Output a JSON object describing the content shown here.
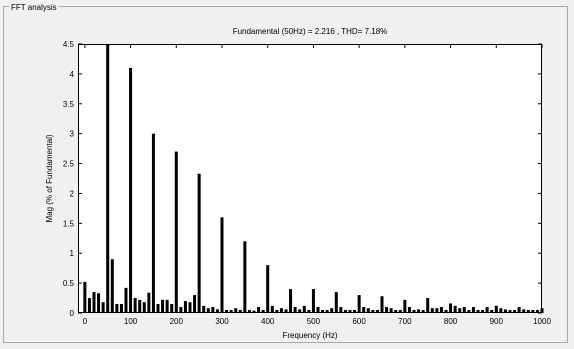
{
  "panel": {
    "title": "FFT analysis"
  },
  "chart_data": {
    "type": "bar",
    "title": "Fundamental (50Hz) = 2.216 , THD= 7.18%",
    "xlabel": "Frequency (Hz)",
    "ylabel": "Mag (% of Fundamental)",
    "xlim": [
      -15,
      1000
    ],
    "ylim": [
      0,
      4.5
    ],
    "xticks": [
      0,
      100,
      200,
      300,
      400,
      500,
      600,
      700,
      800,
      900,
      1000
    ],
    "yticks": [
      0,
      0.5,
      1,
      1.5,
      2,
      2.5,
      3,
      3.5,
      4,
      4.5
    ],
    "ytick_labels": [
      "0",
      "0.5",
      "1",
      "1.5",
      "2",
      "2.5",
      "3",
      "3.5",
      "4",
      "4.5"
    ],
    "grid": false,
    "bar_color": "#000000",
    "x": [
      0,
      10,
      20,
      30,
      40,
      50,
      60,
      70,
      80,
      90,
      100,
      110,
      120,
      130,
      140,
      150,
      160,
      170,
      180,
      190,
      200,
      210,
      220,
      230,
      240,
      250,
      260,
      270,
      280,
      290,
      300,
      310,
      320,
      330,
      340,
      350,
      360,
      370,
      380,
      390,
      400,
      410,
      420,
      430,
      440,
      450,
      460,
      470,
      480,
      490,
      500,
      510,
      520,
      530,
      540,
      550,
      560,
      570,
      580,
      590,
      600,
      610,
      620,
      630,
      640,
      650,
      660,
      670,
      680,
      690,
      700,
      710,
      720,
      730,
      740,
      750,
      760,
      770,
      780,
      790,
      800,
      810,
      820,
      830,
      840,
      850,
      860,
      870,
      880,
      890,
      900,
      910,
      920,
      930,
      940,
      950,
      960,
      970,
      980,
      990,
      1000
    ],
    "values": [
      0.52,
      0.25,
      0.35,
      0.33,
      0.18,
      4.5,
      0.9,
      0.15,
      0.15,
      0.42,
      4.1,
      0.25,
      0.22,
      0.18,
      0.34,
      3.0,
      0.15,
      0.22,
      0.22,
      0.15,
      2.7,
      0.1,
      0.2,
      0.18,
      0.3,
      2.33,
      0.12,
      0.08,
      0.1,
      0.06,
      1.6,
      0.05,
      0.05,
      0.08,
      0.05,
      1.2,
      0.05,
      0.04,
      0.1,
      0.05,
      0.8,
      0.12,
      0.05,
      0.08,
      0.06,
      0.4,
      0.1,
      0.06,
      0.12,
      0.05,
      0.4,
      0.1,
      0.05,
      0.05,
      0.08,
      0.35,
      0.1,
      0.05,
      0.05,
      0.05,
      0.3,
      0.1,
      0.08,
      0.05,
      0.05,
      0.28,
      0.1,
      0.08,
      0.05,
      0.05,
      0.22,
      0.1,
      0.05,
      0.06,
      0.05,
      0.25,
      0.08,
      0.08,
      0.1,
      0.05,
      0.16,
      0.12,
      0.08,
      0.1,
      0.05,
      0.1,
      0.05,
      0.05,
      0.1,
      0.05,
      0.12,
      0.08,
      0.06,
      0.05,
      0.05,
      0.1,
      0.06,
      0.05,
      0.05,
      0.05,
      0.08
    ]
  }
}
